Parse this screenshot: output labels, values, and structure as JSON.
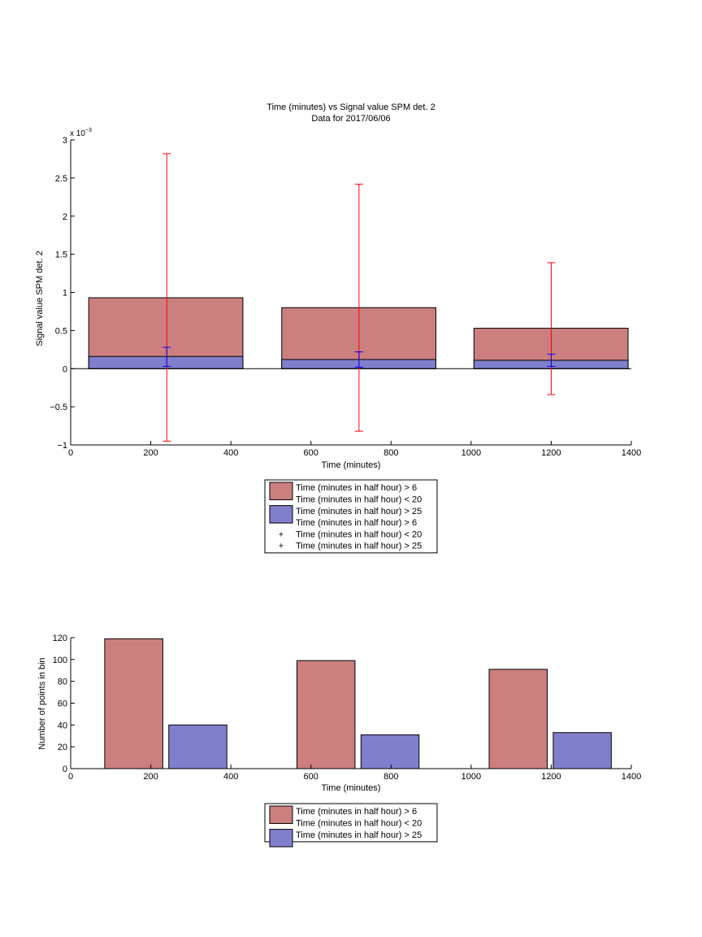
{
  "colors": {
    "red_fill": "#cc7f7f",
    "blue_fill": "#7f7fcc",
    "red_err": "#ff0000",
    "blue_err": "#0000ff",
    "axis": "#000000"
  },
  "chart_data": [
    {
      "type": "bar",
      "title": "Time (minutes) vs Signal value SPM det. 2",
      "subtitle": "Data for 2017/06/06",
      "xlabel": "Time (minutes)",
      "ylabel": "Signal value SPM det. 2",
      "exponent_label": "x 10",
      "exponent_power": "−3",
      "xlim": [
        0,
        1400
      ],
      "ylim": [
        -1,
        3
      ],
      "xticks": [
        0,
        200,
        400,
        600,
        800,
        1000,
        1200,
        1400
      ],
      "xtick_labels": [
        "0",
        "200",
        "400",
        "600",
        "800",
        "1000",
        "1200",
        "1400"
      ],
      "yticks": [
        -1,
        -0.5,
        0,
        0.5,
        1,
        1.5,
        2,
        2.5,
        3
      ],
      "ytick_labels": [
        "−1",
        "−0.5",
        "0",
        "0.5",
        "1",
        "1.5",
        "2",
        "2.5",
        "3"
      ],
      "bins": [
        {
          "x0": 45,
          "x1": 430,
          "center": 240
        },
        {
          "x0": 527,
          "x1": 912,
          "center": 720
        },
        {
          "x0": 1007,
          "x1": 1392,
          "center": 1200
        }
      ],
      "series": [
        {
          "legend_index": 0,
          "color_key": "red_fill",
          "values": [
            0.93,
            0.8,
            0.53
          ],
          "error_bars": [
            {
              "low": -0.95,
              "high": 2.82
            },
            {
              "low": -0.82,
              "high": 2.42
            },
            {
              "low": -0.34,
              "high": 1.39
            }
          ],
          "error_color_key": "red_err"
        },
        {
          "legend_index": 2,
          "color_key": "blue_fill",
          "values": [
            0.16,
            0.12,
            0.11
          ],
          "error_bars": [
            {
              "low": 0.03,
              "high": 0.28
            },
            {
              "low": 0.02,
              "high": 0.22
            },
            {
              "low": 0.03,
              "high": 0.19
            }
          ],
          "error_color_key": "blue_err"
        }
      ],
      "legend": {
        "position": "below",
        "entries": [
          {
            "symbol": "patch",
            "color_key": "red_fill",
            "text": "Time (minutes in half hour) > 6"
          },
          {
            "symbol": "none",
            "text": "Time (minutes in half hour) < 20"
          },
          {
            "symbol": "patch",
            "color_key": "blue_fill",
            "text": "Time (minutes in half hour) > 25"
          },
          {
            "symbol": "none",
            "text": "Time (minutes in half hour) > 6"
          },
          {
            "symbol": "plus",
            "color_key": "red_err",
            "text": "Time (minutes in half hour) < 20"
          },
          {
            "symbol": "plus",
            "color_key": "blue_err",
            "text": "Time (minutes in half hour) > 25"
          }
        ]
      }
    },
    {
      "type": "bar",
      "xlabel": "Time (minutes)",
      "ylabel": "Number of points in bin",
      "xlim": [
        0,
        1400
      ],
      "ylim": [
        0,
        120
      ],
      "xticks": [
        0,
        200,
        400,
        600,
        800,
        1000,
        1200,
        1400
      ],
      "xtick_labels": [
        "0",
        "200",
        "400",
        "600",
        "800",
        "1000",
        "1200",
        "1400"
      ],
      "yticks": [
        0,
        20,
        40,
        60,
        80,
        100,
        120
      ],
      "ytick_labels": [
        "0",
        "20",
        "40",
        "60",
        "80",
        "100",
        "120"
      ],
      "bars": [
        {
          "x0": 85,
          "x1": 230,
          "value": 119,
          "color_key": "red_fill"
        },
        {
          "x0": 245,
          "x1": 390,
          "value": 40,
          "color_key": "blue_fill"
        },
        {
          "x0": 565,
          "x1": 710,
          "value": 99,
          "color_key": "red_fill"
        },
        {
          "x0": 725,
          "x1": 870,
          "value": 31,
          "color_key": "blue_fill"
        },
        {
          "x0": 1045,
          "x1": 1190,
          "value": 91,
          "color_key": "red_fill"
        },
        {
          "x0": 1205,
          "x1": 1350,
          "value": 33,
          "color_key": "blue_fill"
        }
      ],
      "legend": {
        "position": "below",
        "entries": [
          {
            "symbol": "patch",
            "color_key": "red_fill",
            "text": "Time (minutes in half hour) > 6"
          },
          {
            "symbol": "none",
            "text": "Time (minutes in half hour) < 20"
          },
          {
            "symbol": "patch",
            "color_key": "blue_fill",
            "text": "Time (minutes in half hour) > 25"
          }
        ]
      }
    }
  ]
}
